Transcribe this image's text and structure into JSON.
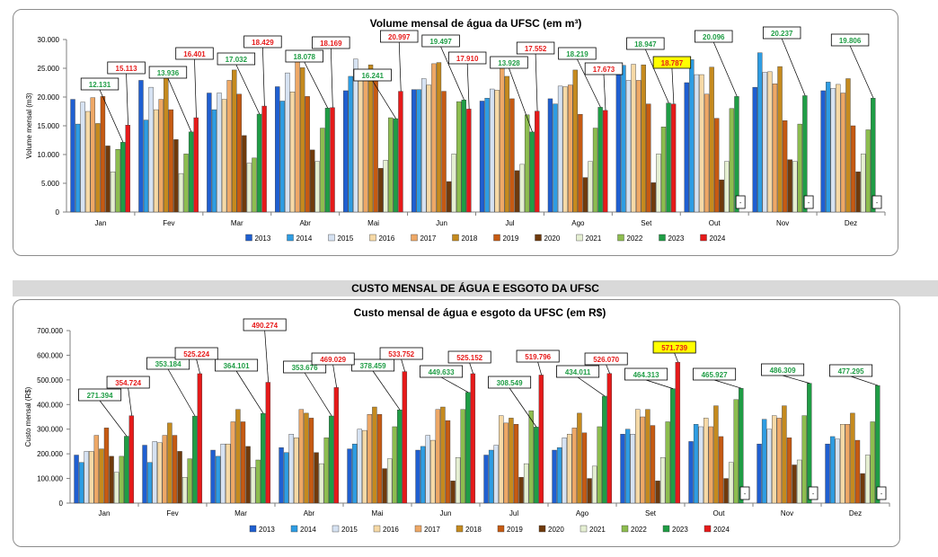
{
  "section_band": "CUSTO MENSAL DE ÁGUA E ESGOTO DA UFSC",
  "chart_data": [
    {
      "type": "bar",
      "title": "Volume mensal de água da UFSC (em m³)",
      "ylabel": "Volume mensal (m3)",
      "xlabel": "",
      "ylim": [
        0,
        30000
      ],
      "yticks": [
        "0",
        "5.000",
        "10.000",
        "15.000",
        "20.000",
        "25.000",
        "30.000"
      ],
      "ytick_values": [
        0,
        5000,
        10000,
        15000,
        20000,
        25000,
        30000
      ],
      "grid": false,
      "legend_position": "bottom",
      "categories": [
        "Jan",
        "Fev",
        "Mar",
        "Abr",
        "Mai",
        "Jun",
        "Jul",
        "Ago",
        "Set",
        "Out",
        "Nov",
        "Dez"
      ],
      "series": [
        {
          "name": "2013",
          "color": "#1f5fd1",
          "values": [
            19600,
            22900,
            20700,
            21800,
            21100,
            21300,
            19300,
            19700,
            24800,
            22500,
            21700,
            21100
          ]
        },
        {
          "name": "2014",
          "color": "#2e9de3",
          "values": [
            15300,
            16000,
            17800,
            19300,
            23600,
            21300,
            19800,
            18800,
            25500,
            26500,
            27700,
            22600
          ]
        },
        {
          "name": "2015",
          "color": "#d6e2f2",
          "values": [
            19100,
            21700,
            20700,
            24200,
            26600,
            23200,
            21400,
            21900,
            22900,
            23900,
            24300,
            21500
          ]
        },
        {
          "name": "2016",
          "color": "#f6d9a6",
          "values": [
            17500,
            17800,
            19600,
            20900,
            24100,
            22100,
            21200,
            21800,
            25700,
            23900,
            24400,
            22200
          ]
        },
        {
          "name": "2017",
          "color": "#eea866",
          "values": [
            19900,
            19600,
            22900,
            26200,
            24500,
            25800,
            26800,
            22100,
            22900,
            20500,
            22300,
            20700
          ]
        },
        {
          "name": "2018",
          "color": "#c58a1e",
          "values": [
            15400,
            23700,
            24700,
            25100,
            25600,
            26000,
            23600,
            24700,
            25600,
            25200,
            25300,
            23200
          ]
        },
        {
          "name": "2019",
          "color": "#c65a12",
          "values": [
            20100,
            17800,
            20500,
            20100,
            22800,
            21000,
            19700,
            17000,
            18800,
            16300,
            15900,
            15000
          ]
        },
        {
          "name": "2020",
          "color": "#6f3a0c",
          "values": [
            11500,
            12600,
            13300,
            10800,
            7600,
            5300,
            7200,
            6000,
            5100,
            5600,
            9100,
            7000
          ]
        },
        {
          "name": "2021",
          "color": "#e5efd2",
          "values": [
            7000,
            6700,
            8500,
            8800,
            9000,
            10100,
            8300,
            8800,
            10100,
            8800,
            8800,
            10100
          ]
        },
        {
          "name": "2022",
          "color": "#8dbd4f",
          "values": [
            10900,
            10100,
            9400,
            14600,
            16400,
            19200,
            16900,
            14600,
            14800,
            18000,
            15300,
            14300
          ]
        },
        {
          "name": "2023",
          "color": "#1f9d45",
          "values": [
            12131,
            13936,
            17032,
            18078,
            16241,
            19497,
            13928,
            18219,
            18947,
            20096,
            20237,
            19806
          ]
        },
        {
          "name": "2024",
          "color": "#e61a1a",
          "values": [
            15113,
            16401,
            18429,
            18169,
            20997,
            17910,
            17552,
            17673,
            18787,
            null,
            null,
            null
          ]
        }
      ],
      "labels_2023": [
        "12.131",
        "13.936",
        "17.032",
        "18.078",
        "16.241",
        "19.497",
        "13.928",
        "18.219",
        "18.947",
        "20.096",
        "20.237",
        "19.806"
      ],
      "labels_2024": [
        "15.113",
        "16.401",
        "18.429",
        "18.169",
        "20.997",
        "17.910",
        "17.552",
        "17.673",
        "18.787",
        "-",
        "-",
        "-"
      ],
      "highlight_2024_month": "Set",
      "highlight_color": "#ffff00"
    },
    {
      "type": "bar",
      "title": "Custo mensal de água e esgoto da UFSC (em R$)",
      "ylabel": "Custo mensal (R$)",
      "xlabel": "",
      "ylim": [
        0,
        700000
      ],
      "yticks": [
        "0",
        "100.000",
        "200.000",
        "300.000",
        "400.000",
        "500.000",
        "600.000",
        "700.000"
      ],
      "ytick_values": [
        0,
        100000,
        200000,
        300000,
        400000,
        500000,
        600000,
        700000
      ],
      "grid": false,
      "legend_position": "bottom",
      "categories": [
        "Jan",
        "Fev",
        "Mar",
        "Abr",
        "Mai",
        "Jun",
        "Jul",
        "Ago",
        "Set",
        "Out",
        "Nov",
        "Dez"
      ],
      "series": [
        {
          "name": "2013",
          "color": "#1f5fd1",
          "values": [
            195000,
            235000,
            215000,
            225000,
            220000,
            215000,
            195000,
            215000,
            280000,
            250000,
            240000,
            240000
          ]
        },
        {
          "name": "2014",
          "color": "#2e9de3",
          "values": [
            165000,
            165000,
            190000,
            205000,
            240000,
            230000,
            215000,
            225000,
            300000,
            320000,
            340000,
            270000
          ]
        },
        {
          "name": "2015",
          "color": "#d6e2f2",
          "values": [
            210000,
            250000,
            240000,
            280000,
            300000,
            275000,
            235000,
            265000,
            280000,
            310000,
            300000,
            260000
          ]
        },
        {
          "name": "2016",
          "color": "#f6d9a6",
          "values": [
            210000,
            245000,
            240000,
            265000,
            295000,
            255000,
            355000,
            280000,
            380000,
            345000,
            355000,
            320000
          ]
        },
        {
          "name": "2017",
          "color": "#eea866",
          "values": [
            275000,
            275000,
            330000,
            380000,
            360000,
            380000,
            325000,
            305000,
            350000,
            310000,
            345000,
            320000
          ]
        },
        {
          "name": "2018",
          "color": "#c58a1e",
          "values": [
            220000,
            325000,
            380000,
            365000,
            390000,
            390000,
            345000,
            365000,
            380000,
            395000,
            395000,
            365000
          ]
        },
        {
          "name": "2019",
          "color": "#c65a12",
          "values": [
            305000,
            275000,
            330000,
            345000,
            360000,
            335000,
            320000,
            285000,
            315000,
            270000,
            265000,
            255000
          ]
        },
        {
          "name": "2020",
          "color": "#6f3a0c",
          "values": [
            190000,
            210000,
            230000,
            205000,
            140000,
            90000,
            105000,
            100000,
            90000,
            100000,
            155000,
            120000
          ]
        },
        {
          "name": "2021",
          "color": "#e5efd2",
          "values": [
            125000,
            105000,
            145000,
            160000,
            180000,
            185000,
            160000,
            150000,
            185000,
            165000,
            175000,
            195000
          ]
        },
        {
          "name": "2022",
          "color": "#8dbd4f",
          "values": [
            190000,
            180000,
            175000,
            265000,
            310000,
            380000,
            375000,
            310000,
            330000,
            420000,
            355000,
            330000
          ]
        },
        {
          "name": "2023",
          "color": "#1f9d45",
          "values": [
            271394,
            353184,
            364101,
            353676,
            378459,
            449633,
            308549,
            434011,
            464313,
            465927,
            486309,
            477295
          ]
        },
        {
          "name": "2024",
          "color": "#e61a1a",
          "values": [
            354724,
            525224,
            490274,
            469029,
            533752,
            525152,
            519796,
            526070,
            571739,
            null,
            null,
            null
          ]
        }
      ],
      "labels_2023": [
        "271.394",
        "353.184",
        "364.101",
        "353.676",
        "378.459",
        "449.633",
        "308.549",
        "434.011",
        "464.313",
        "465.927",
        "486.309",
        "477.295"
      ],
      "labels_2024": [
        "354.724",
        "525.224",
        "490.274",
        "469.029",
        "533.752",
        "525.152",
        "519.796",
        "526.070",
        "571.739",
        "-",
        "-",
        "-"
      ],
      "highlight_2024_month": "Set",
      "highlight_color": "#ffff00"
    }
  ]
}
